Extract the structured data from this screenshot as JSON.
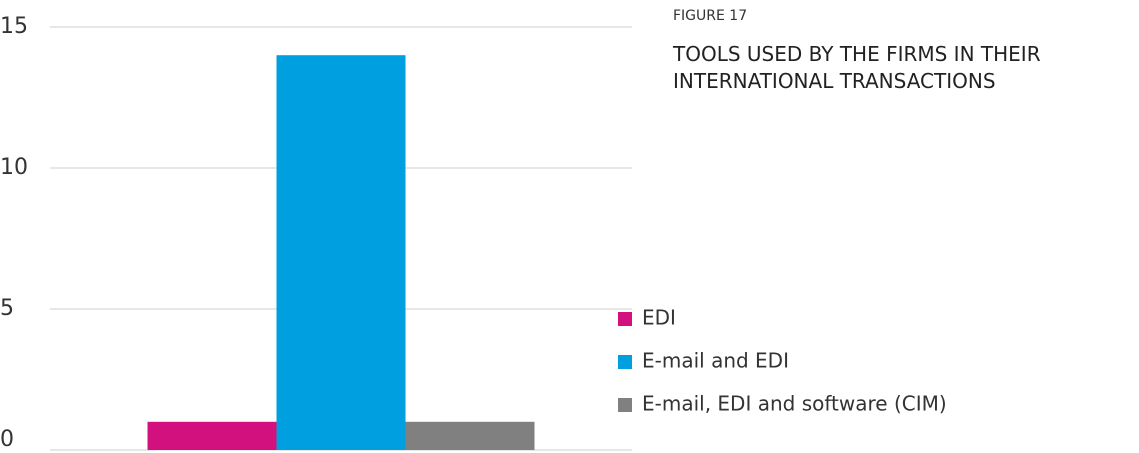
{
  "chart_data": {
    "type": "bar",
    "label": "FIGURE 17",
    "title": "TOOLS USED BY THE FIRMS IN THEIR INTERNATIONAL TRANSACTIONS",
    "categories": [
      null
    ],
    "series": [
      {
        "name": "EDI",
        "color": "#d3117e",
        "values": [
          1
        ]
      },
      {
        "name": "E-mail and EDI",
        "color": "#009fe0",
        "values": [
          14
        ]
      },
      {
        "name": "E-mail, EDI and software (CIM)",
        "color": "#808080",
        "values": [
          1
        ]
      }
    ],
    "ylim": [
      0,
      15
    ],
    "yticks": [
      0,
      5,
      10,
      15
    ],
    "grid": true,
    "legend": "right"
  }
}
